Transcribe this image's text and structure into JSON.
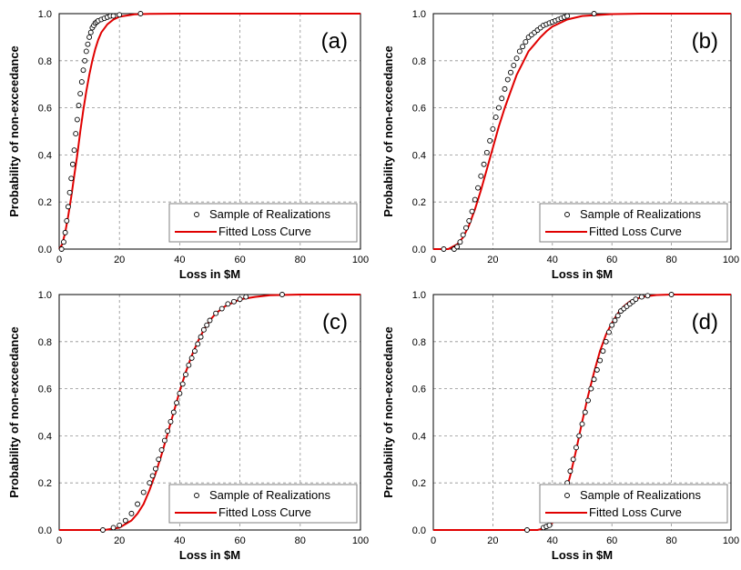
{
  "chart_data": [
    {
      "type": "scatter",
      "panel_label": "(a)",
      "xlabel": "Loss in $M",
      "ylabel": "Probability of non-exceedance",
      "xlim": [
        0,
        100
      ],
      "ylim": [
        0,
        1
      ],
      "xticks": [
        "0",
        "20",
        "40",
        "60",
        "80",
        "100"
      ],
      "yticks": [
        "0.0",
        "0.2",
        "0.4",
        "0.6",
        "0.8",
        "1.0"
      ],
      "grid": true,
      "legend_position": "bottom-right",
      "legend": [
        "Sample of Realizations",
        "Fitted Loss Curve"
      ],
      "series": [
        {
          "name": "Sample of Realizations",
          "kind": "points",
          "color": "#000000",
          "x": [
            0.8,
            1.5,
            2.0,
            2.5,
            3.0,
            3.5,
            4.0,
            4.5,
            5.0,
            5.5,
            6.0,
            6.5,
            7.0,
            7.5,
            8.0,
            8.5,
            9.0,
            9.5,
            10.0,
            10.5,
            11.0,
            11.5,
            12.0,
            12.5,
            13.0,
            14.0,
            15.0,
            16.0,
            17.0,
            18.0,
            20.0,
            27.0
          ],
          "y": [
            0.0,
            0.03,
            0.07,
            0.12,
            0.18,
            0.24,
            0.3,
            0.36,
            0.42,
            0.49,
            0.55,
            0.61,
            0.66,
            0.71,
            0.76,
            0.8,
            0.84,
            0.87,
            0.9,
            0.92,
            0.94,
            0.95,
            0.96,
            0.965,
            0.97,
            0.975,
            0.98,
            0.985,
            0.99,
            0.99,
            0.995,
            1.0
          ]
        },
        {
          "name": "Fitted Loss Curve",
          "kind": "line",
          "color": "#e00000",
          "x": [
            0,
            1,
            2,
            3,
            4,
            5,
            6,
            7,
            8,
            9,
            10,
            11,
            12,
            13,
            14,
            16,
            18,
            20,
            25,
            30,
            40,
            60,
            100
          ],
          "y": [
            0.0,
            0.02,
            0.07,
            0.14,
            0.22,
            0.31,
            0.4,
            0.5,
            0.59,
            0.67,
            0.74,
            0.8,
            0.85,
            0.89,
            0.92,
            0.955,
            0.975,
            0.987,
            0.997,
            0.999,
            1.0,
            1.0,
            1.0
          ]
        }
      ]
    },
    {
      "type": "scatter",
      "panel_label": "(b)",
      "xlabel": "Loss in $M",
      "ylabel": "Probability of non-exceedance",
      "xlim": [
        0,
        100
      ],
      "ylim": [
        0,
        1
      ],
      "xticks": [
        "0",
        "20",
        "40",
        "60",
        "80",
        "100"
      ],
      "yticks": [
        "0.0",
        "0.2",
        "0.4",
        "0.6",
        "0.8",
        "1.0"
      ],
      "grid": true,
      "legend_position": "bottom-right",
      "legend": [
        "Sample of Realizations",
        "Fitted Loss Curve"
      ],
      "series": [
        {
          "name": "Sample of Realizations",
          "kind": "points",
          "color": "#000000",
          "x": [
            3.5,
            7.0,
            8.0,
            9.0,
            10.0,
            11.0,
            12.0,
            13.0,
            14.0,
            15.0,
            16.0,
            17.0,
            18.0,
            19.0,
            20.0,
            21.0,
            22.0,
            23.0,
            24.0,
            25.0,
            26.0,
            27.0,
            28.0,
            29.0,
            30.0,
            31.0,
            32.0,
            33.0,
            34.0,
            35.0,
            36.0,
            37.0,
            38.0,
            39.0,
            40.0,
            41.0,
            42.0,
            43.0,
            44.0,
            45.0,
            54.0
          ],
          "y": [
            0.0,
            0.0,
            0.01,
            0.03,
            0.06,
            0.09,
            0.12,
            0.16,
            0.21,
            0.26,
            0.31,
            0.36,
            0.41,
            0.46,
            0.51,
            0.56,
            0.6,
            0.64,
            0.68,
            0.72,
            0.75,
            0.78,
            0.81,
            0.84,
            0.86,
            0.88,
            0.9,
            0.91,
            0.92,
            0.93,
            0.94,
            0.95,
            0.955,
            0.96,
            0.965,
            0.97,
            0.975,
            0.98,
            0.985,
            0.99,
            1.0
          ]
        },
        {
          "name": "Fitted Loss Curve",
          "kind": "line",
          "color": "#e00000",
          "x": [
            0,
            5,
            8,
            10,
            12,
            14,
            16,
            18,
            20,
            22,
            24,
            26,
            28,
            30,
            32,
            34,
            36,
            38,
            40,
            45,
            50,
            60,
            70,
            100
          ],
          "y": [
            0.0,
            0.0,
            0.02,
            0.05,
            0.1,
            0.17,
            0.25,
            0.34,
            0.43,
            0.52,
            0.6,
            0.67,
            0.74,
            0.79,
            0.84,
            0.87,
            0.9,
            0.925,
            0.945,
            0.975,
            0.99,
            0.998,
            1.0,
            1.0
          ]
        }
      ]
    },
    {
      "type": "scatter",
      "panel_label": "(c)",
      "xlabel": "Loss in $M",
      "ylabel": "Probability of non-exceedance",
      "xlim": [
        0,
        100
      ],
      "ylim": [
        0,
        1
      ],
      "xticks": [
        "0",
        "20",
        "40",
        "60",
        "80",
        "100"
      ],
      "yticks": [
        "0.0",
        "0.2",
        "0.4",
        "0.6",
        "0.8",
        "1.0"
      ],
      "grid": true,
      "legend_position": "bottom-right",
      "legend": [
        "Sample of Realizations",
        "Fitted Loss Curve"
      ],
      "series": [
        {
          "name": "Sample of Realizations",
          "kind": "points",
          "color": "#000000",
          "x": [
            14.5,
            18.0,
            20.0,
            22.0,
            24.0,
            26.0,
            28.0,
            30.0,
            31.0,
            32.0,
            33.0,
            34.0,
            35.0,
            36.0,
            37.0,
            38.0,
            39.0,
            40.0,
            41.0,
            42.0,
            43.0,
            44.0,
            45.0,
            46.0,
            47.0,
            48.0,
            49.0,
            50.0,
            52.0,
            54.0,
            56.0,
            58.0,
            60.0,
            62.0,
            74.0
          ],
          "y": [
            0.0,
            0.01,
            0.02,
            0.04,
            0.07,
            0.11,
            0.16,
            0.2,
            0.23,
            0.26,
            0.3,
            0.34,
            0.38,
            0.42,
            0.46,
            0.5,
            0.54,
            0.58,
            0.62,
            0.66,
            0.7,
            0.73,
            0.76,
            0.79,
            0.82,
            0.85,
            0.87,
            0.89,
            0.92,
            0.94,
            0.96,
            0.97,
            0.98,
            0.99,
            1.0
          ]
        },
        {
          "name": "Fitted Loss Curve",
          "kind": "line",
          "color": "#e00000",
          "x": [
            0,
            15,
            20,
            24,
            26,
            28,
            30,
            32,
            34,
            36,
            38,
            40,
            42,
            44,
            46,
            48,
            50,
            52,
            55,
            60,
            65,
            70,
            80,
            100
          ],
          "y": [
            0.0,
            0.0,
            0.01,
            0.04,
            0.07,
            0.11,
            0.17,
            0.24,
            0.32,
            0.41,
            0.5,
            0.59,
            0.67,
            0.74,
            0.8,
            0.85,
            0.89,
            0.92,
            0.95,
            0.98,
            0.99,
            0.997,
            1.0,
            1.0
          ]
        }
      ]
    },
    {
      "type": "scatter",
      "panel_label": "(d)",
      "xlabel": "Loss in $M",
      "ylabel": "Probability of non-exceedance",
      "xlim": [
        0,
        100
      ],
      "ylim": [
        0,
        1
      ],
      "xticks": [
        "0",
        "20",
        "40",
        "60",
        "80",
        "100"
      ],
      "yticks": [
        "0.0",
        "0.2",
        "0.4",
        "0.6",
        "0.8",
        "1.0"
      ],
      "grid": true,
      "legend_position": "bottom-right",
      "legend": [
        "Sample of Realizations",
        "Fitted Loss Curve"
      ],
      "series": [
        {
          "name": "Sample of Realizations",
          "kind": "points",
          "color": "#000000",
          "x": [
            31.5,
            37.0,
            38.0,
            39.0,
            44.0,
            45.0,
            46.0,
            47.0,
            48.0,
            49.0,
            50.0,
            51.0,
            52.0,
            53.0,
            54.0,
            55.0,
            56.0,
            57.0,
            58.0,
            59.0,
            60.0,
            61.0,
            62.0,
            63.0,
            64.0,
            65.0,
            66.0,
            67.0,
            68.0,
            70.0,
            72.0,
            80.0
          ],
          "y": [
            0.0,
            0.01,
            0.015,
            0.02,
            0.16,
            0.2,
            0.25,
            0.3,
            0.35,
            0.4,
            0.45,
            0.5,
            0.55,
            0.6,
            0.64,
            0.68,
            0.72,
            0.76,
            0.8,
            0.84,
            0.87,
            0.89,
            0.91,
            0.93,
            0.94,
            0.95,
            0.96,
            0.97,
            0.98,
            0.99,
            0.995,
            1.0
          ]
        },
        {
          "name": "Fitted Loss Curve",
          "kind": "line",
          "color": "#e00000",
          "x": [
            0,
            35,
            38,
            40,
            42,
            44,
            46,
            48,
            50,
            52,
            54,
            56,
            58,
            60,
            62,
            64,
            66,
            68,
            70,
            75,
            80,
            100
          ],
          "y": [
            0.0,
            0.0,
            0.01,
            0.03,
            0.07,
            0.14,
            0.23,
            0.34,
            0.46,
            0.57,
            0.67,
            0.76,
            0.83,
            0.88,
            0.92,
            0.95,
            0.97,
            0.98,
            0.99,
            0.998,
            1.0,
            1.0
          ]
        }
      ]
    }
  ]
}
